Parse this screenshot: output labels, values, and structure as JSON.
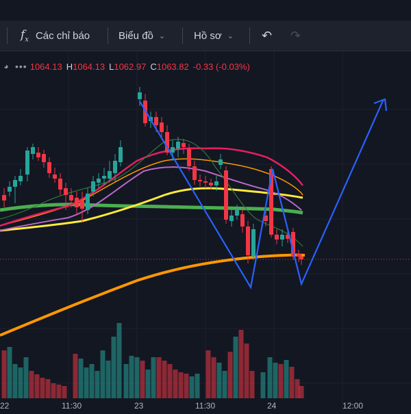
{
  "toolbar": {
    "indicators_label": "Các chỉ báo",
    "chart_label": "Biểu đồ",
    "profile_label": "Hồ sơ"
  },
  "legend": {
    "open_key": "",
    "open": "1064.13",
    "high_key": "H",
    "high": "1064.13",
    "low_key": "L",
    "low": "1062.97",
    "close_key": "C",
    "close": "1063.82",
    "change": "-0.33 (-0.03%)"
  },
  "x_axis": {
    "ticks": [
      "22",
      "11:30",
      "23",
      "11:30",
      "24",
      "12:00"
    ]
  },
  "colors": {
    "up": "#26a69a",
    "down": "#f23645",
    "pattern": "#2962ff",
    "ma_yellow": "#ffeb3b",
    "ma_green": "#4caf50",
    "ma_orange": "#ff9800",
    "ma_pink": "#e91e63",
    "ma_purple": "#ba68c8"
  }
}
